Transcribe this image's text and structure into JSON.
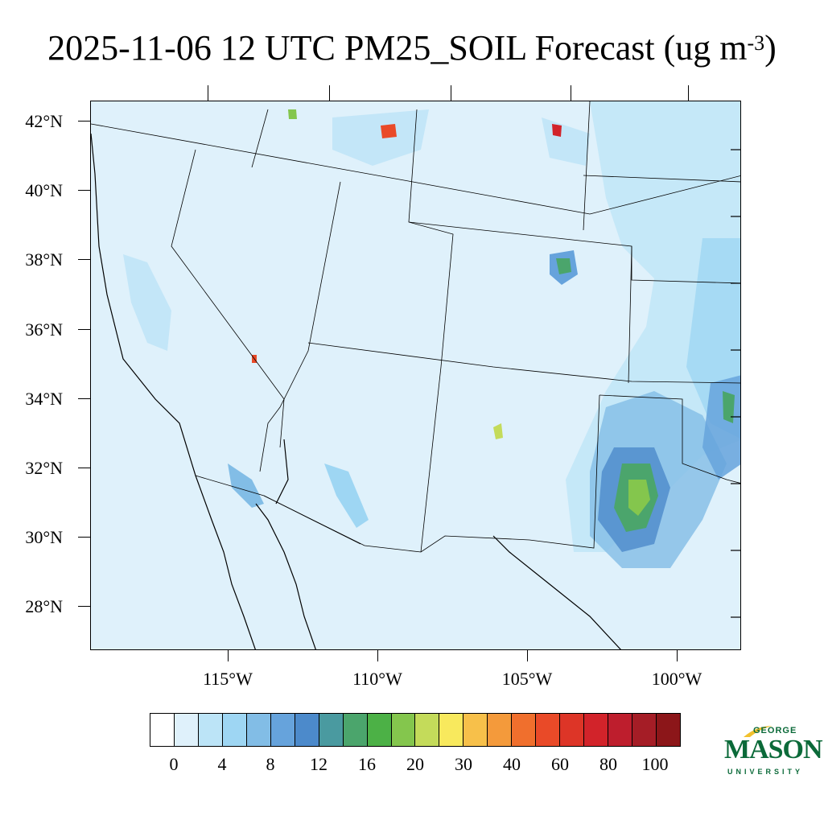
{
  "title": {
    "main": "2025-11-06 12 UTC PM25_SOIL Forecast (ug m",
    "sup": "-3",
    "close": ")"
  },
  "map": {
    "background_color": "#dff1fb",
    "lat_labels": [
      "42°N",
      "40°N",
      "38°N",
      "36°N",
      "34°N",
      "32°N",
      "30°N",
      "28°N"
    ],
    "lon_labels": [
      "115°W",
      "110°W",
      "105°W",
      "100°W"
    ]
  },
  "colorbar": {
    "colors": [
      "#ffffff",
      "#dff1fb",
      "#bce4f7",
      "#9ed6f3",
      "#82bde6",
      "#66a3dc",
      "#4c8acb",
      "#4a9aa0",
      "#4ba56c",
      "#4cb146",
      "#84c64d",
      "#c4db5a",
      "#f8e95d",
      "#f7c04a",
      "#f49a3b",
      "#f06f2d",
      "#e94a28",
      "#dd3527",
      "#d2232a",
      "#be1e2d",
      "#a51d26",
      "#8c1619"
    ],
    "labels": [
      "0",
      "4",
      "8",
      "12",
      "16",
      "20",
      "30",
      "40",
      "60",
      "80",
      "100"
    ]
  },
  "logo": {
    "george": "GEORGE",
    "mason": "MASON",
    "university": "UNIVERSITY"
  }
}
